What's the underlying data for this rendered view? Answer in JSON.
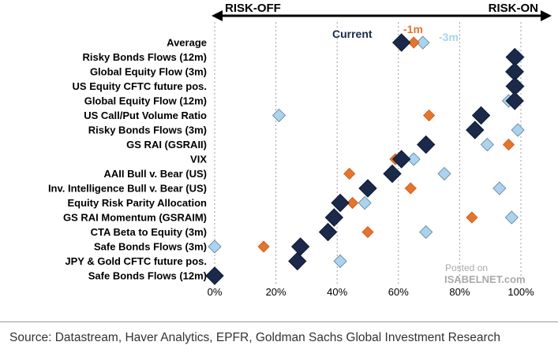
{
  "chart_data": {
    "type": "scatter",
    "title": "",
    "xlabel": "",
    "ylabel": "",
    "xlim": [
      0,
      100
    ],
    "x_ticks": [
      "0%",
      "20%",
      "40%",
      "60%",
      "80%",
      "100%"
    ],
    "x_tick_values": [
      0,
      20,
      40,
      60,
      80,
      100
    ],
    "grid": "vertical",
    "arrow_labels": {
      "left": "RISK-OFF",
      "right": "RISK-ON"
    },
    "categories": [
      "Average",
      "Risky Bonds Flows (12m)",
      "Global Equity Flow (3m)",
      "US Equity CFTC future pos.",
      "Global Equity Flow (12m)",
      "US Call/Put Volume Ratio",
      "Risky Bonds Flows (3m)",
      "GS RAI (GSRAII)",
      "VIX",
      "AAII Bull v. Bear (US)",
      "Inv. Intelligence Bull v. Bear (US)",
      "Equity Risk Parity Allocation",
      "GS RAI Momentum (GSRAIM)",
      "CTA Beta to Equity (3m)",
      "Safe Bonds Flows (3m)",
      "JPY & Gold CFTC future pos.",
      "Safe Bonds Flows (12m)"
    ],
    "series": [
      {
        "name": "Current",
        "color": "#1b2a4a",
        "values": [
          61,
          98,
          98,
          98,
          98,
          87,
          85,
          69,
          61,
          58,
          50,
          41,
          39,
          37,
          28,
          27,
          0
        ]
      },
      {
        "name": "-1m",
        "color": "#e8732a",
        "values": [
          65,
          98,
          99,
          98,
          98,
          70,
          85,
          96,
          59,
          44,
          64,
          45,
          84,
          50,
          16,
          27,
          0
        ]
      },
      {
        "name": "-3m",
        "color": "#a9d3ee",
        "values": [
          68,
          99,
          97,
          99,
          96,
          21,
          99,
          89,
          65,
          75,
          93,
          49,
          97,
          69,
          0,
          41,
          0
        ]
      }
    ],
    "legend_position": "top"
  },
  "watermark": {
    "line1": "Posted on",
    "line2": "ISABELNET.com"
  },
  "source": "Source: Datastream, Haver Analytics, EPFR, Goldman Sachs Global Investment Research"
}
